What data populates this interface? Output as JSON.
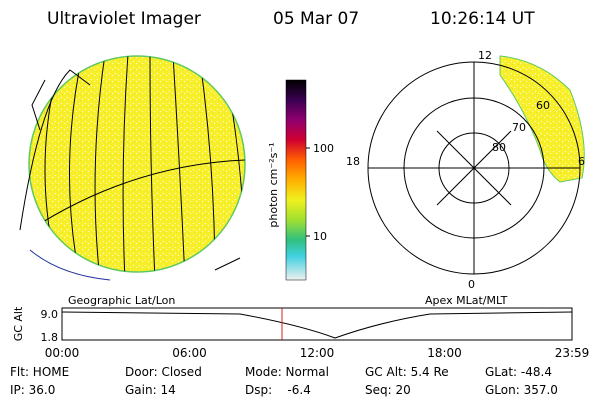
{
  "header": {
    "title": "Ultraviolet Imager",
    "date": "05 Mar 07",
    "time": "10:26:14 UT"
  },
  "colorbar": {
    "label": "photon cm⁻²s⁻¹",
    "ticks": [
      "100",
      "10"
    ]
  },
  "polar": {
    "top": "12",
    "left": "18",
    "right": "6",
    "bottom": "0",
    "rings": [
      "80",
      "70",
      "60"
    ]
  },
  "captions": {
    "left": "Geographic Lat/Lon",
    "right": "Apex MLat/MLT"
  },
  "altitude": {
    "axis_label": "GC Alt",
    "yticks": [
      "9.0",
      "1.8"
    ],
    "xticks": [
      "00:00",
      "06:00",
      "12:00",
      "18:00",
      "23:59"
    ]
  },
  "status": [
    [
      "Flt: HOME",
      "Door: Closed",
      "Mode: Normal",
      "GC Alt: 5.4 Re",
      "GLat: -48.4"
    ],
    [
      "IP: 36.0",
      "Gain: 14",
      "Dsp:    -6.4",
      "Seq: 20",
      "GLon: 357.0"
    ]
  ]
}
